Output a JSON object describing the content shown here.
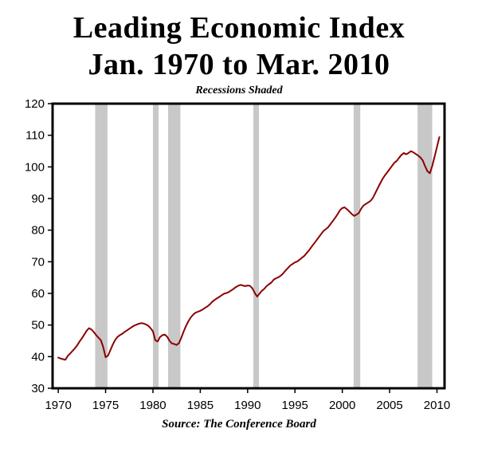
{
  "chart_data": {
    "type": "line",
    "title": "Leading Economic Index Jan. 1970 to Mar. 2010",
    "title_line1": "Leading Economic Index",
    "title_line2": "Jan. 1970 to Mar. 2010",
    "subtitle": "Recessions Shaded",
    "source": "Source: The Conference Board",
    "xlabel": "",
    "ylabel": "",
    "grid": false,
    "legend": "none",
    "x_domain": [
      1969.4,
      2010.8
    ],
    "y_domain": [
      30,
      120
    ],
    "x_ticks": [
      1970,
      1975,
      1980,
      1985,
      1990,
      1995,
      2000,
      2005,
      2010
    ],
    "y_ticks": [
      30,
      40,
      50,
      60,
      70,
      80,
      90,
      100,
      110,
      120
    ],
    "line_color": "#8b0000",
    "band_color": "#c8c8c8",
    "border_color": "#000000",
    "recession_bands": [
      [
        1973.9,
        1975.2
      ],
      [
        1980.0,
        1980.6
      ],
      [
        1981.6,
        1982.9
      ],
      [
        1990.6,
        1991.2
      ],
      [
        2001.2,
        2001.9
      ],
      [
        2007.95,
        2009.5
      ]
    ],
    "series": [
      {
        "name": "Leading Economic Index",
        "points": [
          [
            1970.0,
            39.7
          ],
          [
            1970.25,
            39.4
          ],
          [
            1970.5,
            39.2
          ],
          [
            1970.75,
            39.0
          ],
          [
            1971.0,
            40.2
          ],
          [
            1971.25,
            41.0
          ],
          [
            1971.5,
            41.8
          ],
          [
            1971.75,
            42.6
          ],
          [
            1972.0,
            43.6
          ],
          [
            1972.25,
            44.8
          ],
          [
            1972.5,
            45.8
          ],
          [
            1972.75,
            47.0
          ],
          [
            1973.0,
            48.2
          ],
          [
            1973.25,
            49.0
          ],
          [
            1973.5,
            48.6
          ],
          [
            1973.75,
            47.8
          ],
          [
            1974.0,
            46.8
          ],
          [
            1974.25,
            46.0
          ],
          [
            1974.5,
            45.2
          ],
          [
            1974.75,
            43.0
          ],
          [
            1975.0,
            39.8
          ],
          [
            1975.25,
            40.3
          ],
          [
            1975.5,
            42.0
          ],
          [
            1975.75,
            43.8
          ],
          [
            1976.0,
            45.2
          ],
          [
            1976.25,
            46.2
          ],
          [
            1976.5,
            46.8
          ],
          [
            1976.75,
            47.2
          ],
          [
            1977.0,
            47.8
          ],
          [
            1977.25,
            48.3
          ],
          [
            1977.5,
            48.8
          ],
          [
            1977.75,
            49.3
          ],
          [
            1978.0,
            49.8
          ],
          [
            1978.25,
            50.1
          ],
          [
            1978.5,
            50.4
          ],
          [
            1978.75,
            50.6
          ],
          [
            1979.0,
            50.5
          ],
          [
            1979.25,
            50.2
          ],
          [
            1979.5,
            49.8
          ],
          [
            1979.75,
            49.0
          ],
          [
            1980.0,
            48.0
          ],
          [
            1980.25,
            45.2
          ],
          [
            1980.5,
            44.8
          ],
          [
            1980.75,
            46.2
          ],
          [
            1981.0,
            46.8
          ],
          [
            1981.25,
            47.0
          ],
          [
            1981.5,
            46.3
          ],
          [
            1981.75,
            45.0
          ],
          [
            1982.0,
            44.2
          ],
          [
            1982.25,
            44.0
          ],
          [
            1982.5,
            43.7
          ],
          [
            1982.75,
            44.3
          ],
          [
            1983.0,
            46.0
          ],
          [
            1983.25,
            48.0
          ],
          [
            1983.5,
            49.8
          ],
          [
            1983.75,
            51.2
          ],
          [
            1984.0,
            52.4
          ],
          [
            1984.25,
            53.3
          ],
          [
            1984.5,
            53.9
          ],
          [
            1984.75,
            54.2
          ],
          [
            1985.0,
            54.5
          ],
          [
            1985.25,
            54.9
          ],
          [
            1985.5,
            55.4
          ],
          [
            1985.75,
            55.9
          ],
          [
            1986.0,
            56.5
          ],
          [
            1986.25,
            57.3
          ],
          [
            1986.5,
            57.9
          ],
          [
            1986.75,
            58.4
          ],
          [
            1987.0,
            58.9
          ],
          [
            1987.25,
            59.4
          ],
          [
            1987.5,
            59.9
          ],
          [
            1987.75,
            60.1
          ],
          [
            1988.0,
            60.4
          ],
          [
            1988.25,
            60.9
          ],
          [
            1988.5,
            61.4
          ],
          [
            1988.75,
            62.0
          ],
          [
            1989.0,
            62.4
          ],
          [
            1989.25,
            62.7
          ],
          [
            1989.5,
            62.5
          ],
          [
            1989.75,
            62.3
          ],
          [
            1990.0,
            62.5
          ],
          [
            1990.25,
            62.4
          ],
          [
            1990.5,
            61.6
          ],
          [
            1990.75,
            60.2
          ],
          [
            1991.0,
            59.0
          ],
          [
            1991.25,
            59.9
          ],
          [
            1991.5,
            60.8
          ],
          [
            1991.75,
            61.4
          ],
          [
            1992.0,
            62.3
          ],
          [
            1992.25,
            62.9
          ],
          [
            1992.5,
            63.4
          ],
          [
            1992.75,
            64.3
          ],
          [
            1993.0,
            64.8
          ],
          [
            1993.25,
            65.1
          ],
          [
            1993.5,
            65.6
          ],
          [
            1993.75,
            66.3
          ],
          [
            1994.0,
            67.2
          ],
          [
            1994.25,
            68.0
          ],
          [
            1994.5,
            68.8
          ],
          [
            1994.75,
            69.3
          ],
          [
            1995.0,
            69.8
          ],
          [
            1995.25,
            70.1
          ],
          [
            1995.5,
            70.7
          ],
          [
            1995.75,
            71.3
          ],
          [
            1996.0,
            71.9
          ],
          [
            1996.25,
            72.8
          ],
          [
            1996.5,
            73.7
          ],
          [
            1996.75,
            74.7
          ],
          [
            1997.0,
            75.7
          ],
          [
            1997.25,
            76.7
          ],
          [
            1997.5,
            77.7
          ],
          [
            1997.75,
            78.7
          ],
          [
            1998.0,
            79.7
          ],
          [
            1998.25,
            80.3
          ],
          [
            1998.5,
            80.9
          ],
          [
            1998.75,
            81.9
          ],
          [
            1999.0,
            82.9
          ],
          [
            1999.25,
            83.9
          ],
          [
            1999.5,
            85.0
          ],
          [
            1999.75,
            86.3
          ],
          [
            2000.0,
            87.0
          ],
          [
            2000.25,
            87.2
          ],
          [
            2000.5,
            86.6
          ],
          [
            2000.75,
            85.9
          ],
          [
            2001.0,
            85.1
          ],
          [
            2001.25,
            84.5
          ],
          [
            2001.5,
            84.9
          ],
          [
            2001.75,
            85.4
          ],
          [
            2002.0,
            86.8
          ],
          [
            2002.25,
            87.8
          ],
          [
            2002.5,
            88.3
          ],
          [
            2002.75,
            88.8
          ],
          [
            2003.0,
            89.3
          ],
          [
            2003.25,
            90.3
          ],
          [
            2003.5,
            91.8
          ],
          [
            2003.75,
            93.3
          ],
          [
            2004.0,
            94.8
          ],
          [
            2004.25,
            96.2
          ],
          [
            2004.5,
            97.3
          ],
          [
            2004.75,
            98.3
          ],
          [
            2005.0,
            99.3
          ],
          [
            2005.25,
            100.3
          ],
          [
            2005.5,
            101.3
          ],
          [
            2005.75,
            101.9
          ],
          [
            2006.0,
            102.9
          ],
          [
            2006.25,
            103.8
          ],
          [
            2006.5,
            104.4
          ],
          [
            2006.75,
            104.0
          ],
          [
            2007.0,
            104.4
          ],
          [
            2007.25,
            105.0
          ],
          [
            2007.5,
            104.6
          ],
          [
            2007.75,
            104.1
          ],
          [
            2008.0,
            103.6
          ],
          [
            2008.25,
            103.0
          ],
          [
            2008.5,
            102.0
          ],
          [
            2008.75,
            100.2
          ],
          [
            2009.0,
            98.6
          ],
          [
            2009.25,
            98.0
          ],
          [
            2009.5,
            100.3
          ],
          [
            2009.75,
            103.2
          ],
          [
            2010.0,
            106.3
          ],
          [
            2010.25,
            109.4
          ]
        ]
      }
    ]
  }
}
